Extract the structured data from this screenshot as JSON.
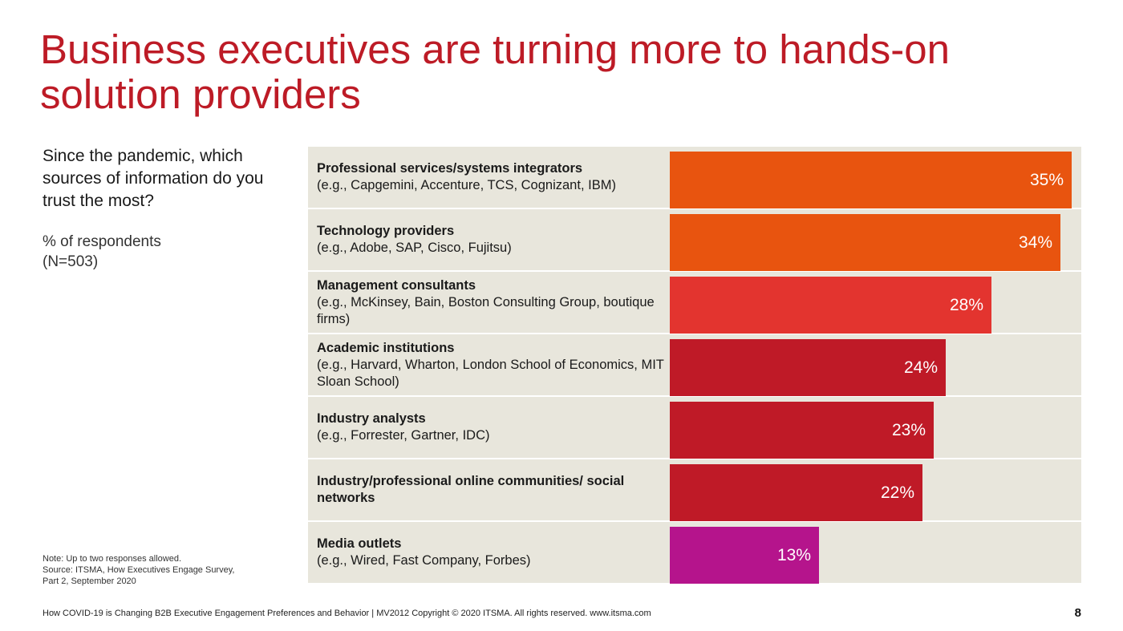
{
  "slide": {
    "title_lines": [
      "Business executives are turning more to hands-on",
      "solution providers"
    ],
    "question": "Since the pandemic, which sources of information do you trust the most?",
    "respondents_lines": [
      "% of respondents",
      "(N=503)"
    ],
    "note_lines": [
      "Note: Up to two responses allowed.",
      "Source: ITSMA, How Executives Engage Survey,",
      "Part 2, September 2020"
    ],
    "footer": "How COVID-19 is Changing B2B Executive Engagement Preferences and Behavior | MV2012 Copyright © 2020 ITSMA. All rights reserved.  www.itsma.com",
    "page_number": "8"
  },
  "chart_data": {
    "type": "bar",
    "orientation": "horizontal",
    "categories": [
      {
        "name": "Professional services/systems integrators",
        "examples": "(e.g., Capgemini, Accenture, TCS, Cognizant, IBM)"
      },
      {
        "name": "Technology providers",
        "examples": "(e.g., Adobe, SAP, Cisco, Fujitsu)"
      },
      {
        "name": "Management consultants",
        "examples": "(e.g., McKinsey, Bain, Boston Consulting Group, boutique firms)"
      },
      {
        "name": "Academic institutions",
        "examples": "(e.g., Harvard, Wharton, London School of Economics, MIT Sloan School)"
      },
      {
        "name": "Industry analysts",
        "examples": "(e.g., Forrester, Gartner, IDC)"
      },
      {
        "name": "Industry/professional online communities/ social networks",
        "examples": ""
      },
      {
        "name": "Media outlets",
        "examples": "(e.g., Wired, Fast Company, Forbes)"
      }
    ],
    "values": [
      35,
      34,
      28,
      24,
      23,
      22,
      13
    ],
    "value_labels": [
      "35%",
      "34%",
      "28%",
      "24%",
      "23%",
      "22%",
      "13%"
    ],
    "colors": [
      "#e8540f",
      "#e8540f",
      "#e3342f",
      "#bf1a27",
      "#bf1a27",
      "#bf1a27",
      "#b5148c"
    ],
    "xlim": [
      0,
      35
    ],
    "background": "#e8e6dc",
    "grid": false
  }
}
